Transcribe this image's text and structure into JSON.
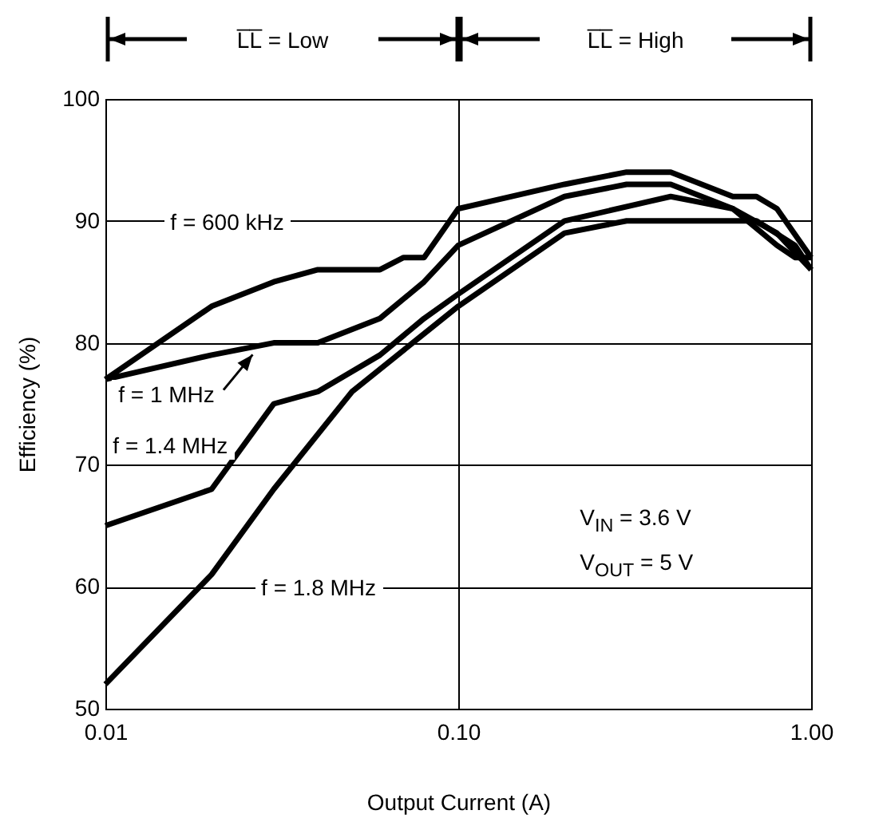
{
  "chart_data": {
    "type": "line",
    "xlabel": "Output Current (A)",
    "ylabel": "Efficiency (%)",
    "log": "x",
    "grid": true,
    "legend": false,
    "xlim": [
      0.01,
      1
    ],
    "xticks": [
      {
        "value": 0.01,
        "label": "0.01"
      },
      {
        "value": 0.1,
        "label": "0.10"
      },
      {
        "value": 1,
        "label": "1.00"
      }
    ],
    "ylim": [
      50,
      100
    ],
    "yticks": [
      50,
      60,
      70,
      80,
      90,
      100
    ],
    "series": [
      {
        "name": "f = 600 kHz",
        "color": "#000000",
        "x": [
          0.01,
          0.02,
          0.03,
          0.04,
          0.06,
          0.07,
          0.08,
          0.1,
          0.2,
          0.3,
          0.4,
          0.6,
          0.7,
          0.8,
          1
        ],
        "values": [
          77,
          83,
          85,
          86,
          86,
          87,
          87,
          91,
          93,
          94,
          94,
          92,
          92,
          91,
          87
        ]
      },
      {
        "name": "f = 1 MHz",
        "color": "#000000",
        "x": [
          0.01,
          0.02,
          0.03,
          0.04,
          0.06,
          0.08,
          0.1,
          0.2,
          0.3,
          0.4,
          0.6,
          0.8,
          1
        ],
        "values": [
          77,
          79,
          80,
          80,
          82,
          85,
          88,
          92,
          93,
          93,
          91,
          89,
          86
        ]
      },
      {
        "name": "f = 1.4 MHz",
        "color": "#000000",
        "x": [
          0.01,
          0.02,
          0.03,
          0.04,
          0.06,
          0.08,
          0.1,
          0.2,
          0.4,
          0.6,
          0.8,
          0.9,
          1
        ],
        "values": [
          65,
          68,
          75,
          76,
          79,
          82,
          84,
          90,
          92,
          91,
          88,
          87,
          87
        ]
      },
      {
        "name": "f = 1.8 MHz",
        "color": "#000000",
        "x": [
          0.01,
          0.02,
          0.03,
          0.05,
          0.1,
          0.2,
          0.3,
          0.5,
          0.7,
          0.9,
          1
        ],
        "values": [
          52,
          61,
          68,
          76,
          83,
          89,
          90,
          90,
          90,
          88,
          86
        ]
      }
    ],
    "annotations": [
      "L̅L̅ = Low",
      "L̅L̅ = High",
      "V$_{IN}$ = 3.6 V",
      "V$_{OUT}$ = 5 V"
    ]
  }
}
